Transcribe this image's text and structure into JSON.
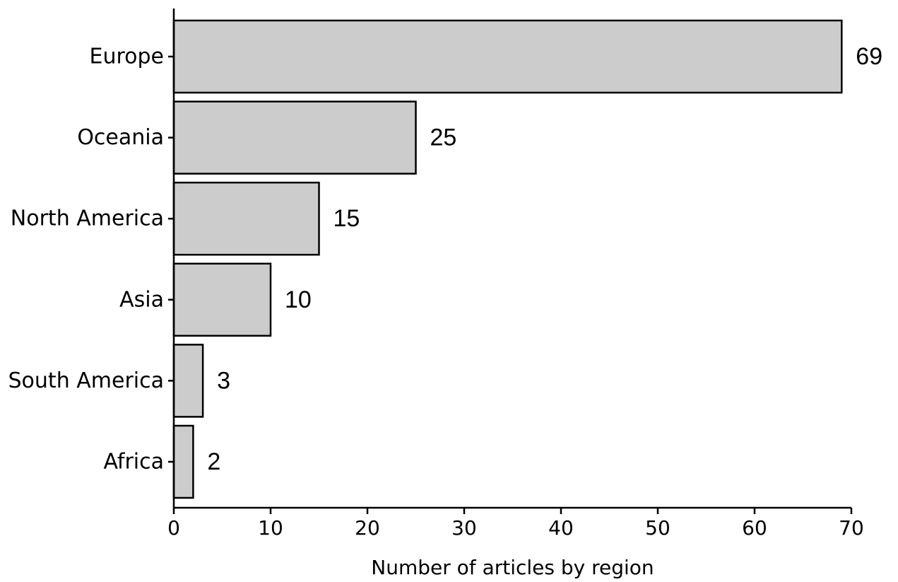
{
  "chart_data": {
    "type": "bar",
    "orientation": "horizontal",
    "categories": [
      "Europe",
      "Oceania",
      "North America",
      "Asia",
      "South America",
      "Africa"
    ],
    "values": [
      69,
      25,
      15,
      10,
      3,
      2
    ],
    "data_labels": [
      "69",
      "25",
      "15",
      "10",
      "3",
      "2"
    ],
    "title": "",
    "xlabel": "Number of articles by region",
    "ylabel": "",
    "xlim": [
      0,
      70
    ],
    "x_ticks": [
      0,
      10,
      20,
      30,
      40,
      50,
      60,
      70
    ],
    "x_tick_labels": [
      "0",
      "10",
      "20",
      "30",
      "40",
      "50",
      "60",
      "70"
    ],
    "grid": false,
    "legend": "none",
    "colors": {
      "bar_fill": "#cccccc",
      "bar_stroke": "#000000",
      "axis": "#000000",
      "background": "#ffffff"
    }
  }
}
